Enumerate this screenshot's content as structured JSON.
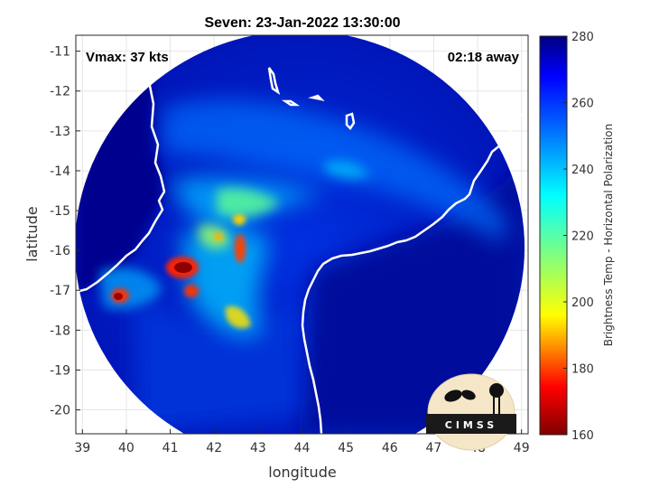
{
  "title": "Seven: 23-Jan-2022 13:30:00",
  "annotations": {
    "vmax": "Vmax: 37 kts",
    "time_away": "02:18 away"
  },
  "logo": {
    "text": "CIMSS"
  },
  "axes": {
    "xlabel": "longitude",
    "ylabel": "latitude",
    "xticks": [
      "39",
      "40",
      "41",
      "42",
      "43",
      "44",
      "45",
      "46",
      "47",
      "48",
      "49"
    ],
    "yticks": [
      "-11",
      "-12",
      "-13",
      "-14",
      "-15",
      "-16",
      "-17",
      "-18",
      "-19",
      "-20"
    ],
    "xlim": [
      38.85,
      49.15
    ],
    "ylim": [
      -20.6,
      -10.6
    ]
  },
  "colorbar": {
    "label": "Brightness Temp - Horizontal Polarization",
    "ticks": [
      "280",
      "260",
      "240",
      "220",
      "200",
      "180",
      "160"
    ],
    "range": [
      160,
      280
    ],
    "colormap": "jet-reversed"
  },
  "colors": {
    "coastline": "#ffffff",
    "background_min": "#00008b",
    "hot": "#8b0000"
  },
  "chart_data": {
    "type": "heatmap",
    "title": "Seven: 23-Jan-2022 13:30:00",
    "xlabel": "longitude",
    "ylabel": "latitude",
    "xlim": [
      38.85,
      49.15
    ],
    "ylim": [
      -20.6,
      -10.6
    ],
    "value_range": [
      160,
      280
    ],
    "grid": true,
    "features": [
      {
        "lon": 41.2,
        "lat": -16.4,
        "brightness_temp": 165
      },
      {
        "lon": 39.8,
        "lat": -17.2,
        "brightness_temp": 175
      },
      {
        "lon": 42.6,
        "lat": -16.0,
        "brightness_temp": 185
      },
      {
        "lon": 41.5,
        "lat": -17.1,
        "brightness_temp": 190
      },
      {
        "lon": 42.8,
        "lat": -17.8,
        "brightness_temp": 200
      }
    ]
  }
}
